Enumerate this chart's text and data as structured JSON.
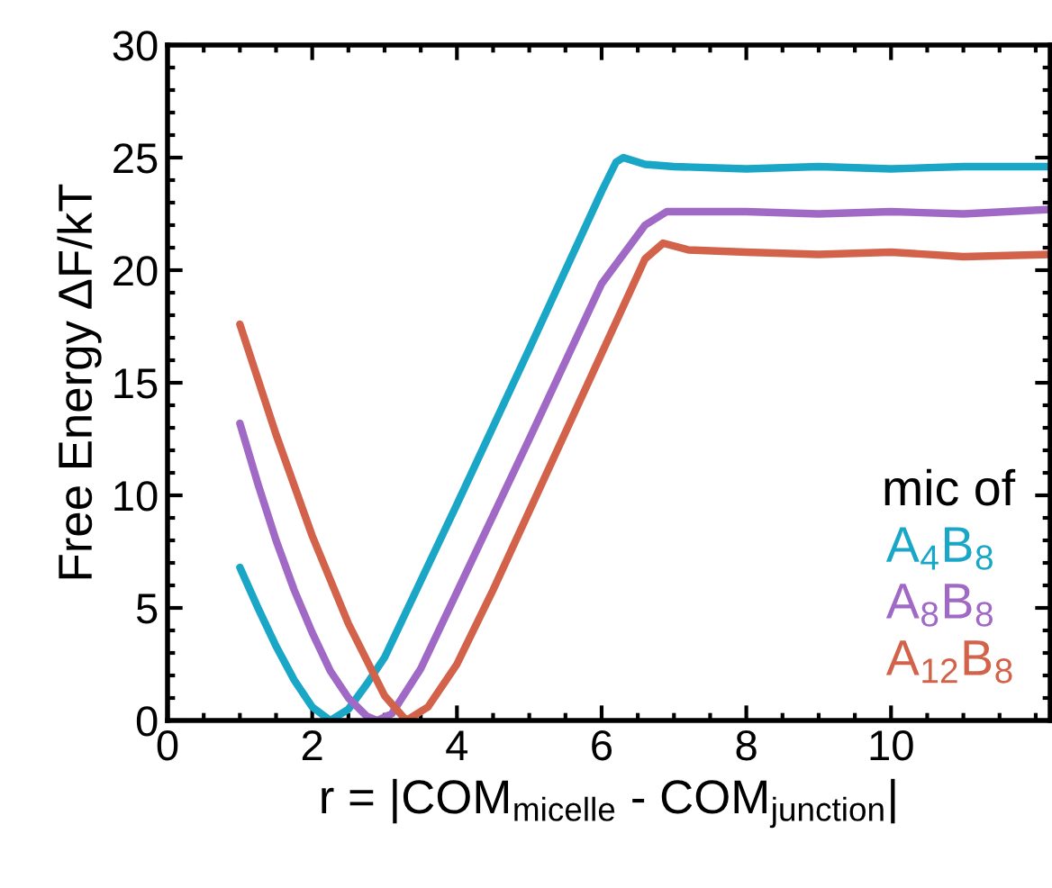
{
  "chart_data": {
    "type": "line",
    "xlabel": "r = |COM$_{micelle}$ - COM$_{junction}$|",
    "ylabel": "Free Energy ΔF/kT",
    "legend_title": "mic of",
    "legend": "bottom right",
    "xlim": [
      0,
      12.2
    ],
    "ylim": [
      0,
      30
    ],
    "xticks": [
      0,
      2,
      4,
      6,
      8,
      10
    ],
    "yticks": [
      0,
      5,
      10,
      15,
      20,
      25,
      30
    ],
    "series": [
      {
        "name": "A$_{4}$B$_{8}$",
        "color": "#1aa6c6",
        "x": [
          1,
          1.25,
          1.5,
          1.75,
          2.0,
          2.25,
          2.5,
          2.75,
          3.0,
          3.5,
          4.0,
          5.0,
          6.0,
          6.2,
          6.3,
          6.6,
          7,
          8,
          9,
          10,
          11,
          12.2
        ],
        "values": [
          6.8,
          5.0,
          3.3,
          1.8,
          0.6,
          0.0,
          0.5,
          1.6,
          2.8,
          6.2,
          9.6,
          16.5,
          23.5,
          24.8,
          25.0,
          24.7,
          24.6,
          24.5,
          24.6,
          24.5,
          24.6,
          24.6
        ]
      },
      {
        "name": "A$_{8}$B$_{8}$",
        "color": "#a169c6",
        "x": [
          1,
          1.25,
          1.5,
          1.75,
          2.0,
          2.25,
          2.5,
          2.75,
          2.9,
          3.1,
          3.5,
          4.0,
          5.0,
          6.0,
          6.6,
          6.9,
          8,
          9,
          10,
          11,
          12.2
        ],
        "values": [
          13.2,
          10.5,
          8.0,
          5.8,
          3.9,
          2.2,
          1.0,
          0.2,
          0.0,
          0.3,
          2.3,
          5.7,
          12.5,
          19.4,
          22.0,
          22.6,
          22.6,
          22.5,
          22.6,
          22.5,
          22.7
        ]
      },
      {
        "name": "A$_{12}$B$_{8}$",
        "color": "#d2634a",
        "x": [
          1,
          1.5,
          2.0,
          2.5,
          3.0,
          3.3,
          3.6,
          4.0,
          4.5,
          5.0,
          6.0,
          6.6,
          6.85,
          7.2,
          8,
          9,
          10,
          11,
          12.2
        ],
        "values": [
          17.6,
          12.7,
          8.2,
          4.3,
          1.1,
          0.0,
          0.6,
          2.5,
          5.8,
          9.3,
          16.3,
          20.5,
          21.2,
          20.9,
          20.8,
          20.7,
          20.8,
          20.6,
          20.7
        ]
      }
    ]
  }
}
